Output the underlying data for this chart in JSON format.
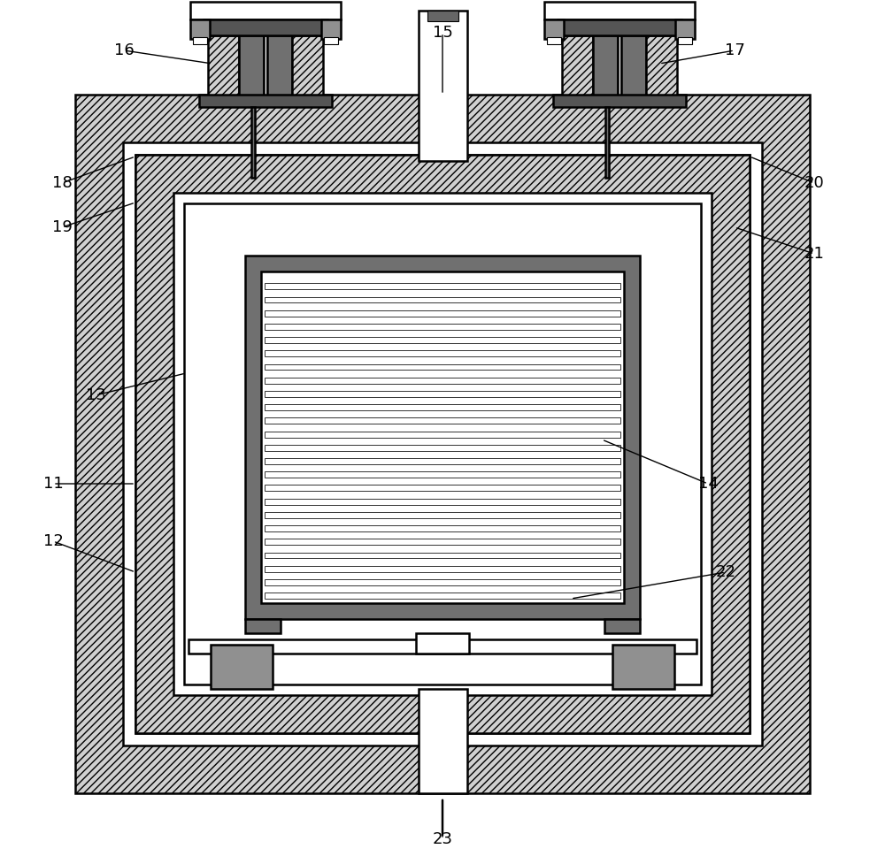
{
  "bg_color": "#ffffff",
  "black": "#000000",
  "hatch_fc": "#d0d0d0",
  "dark_gray": "#707070",
  "med_gray": "#909090",
  "lw": 1.8,
  "fig_w": 10.0,
  "fig_h": 9.77,
  "label_fs": 13
}
